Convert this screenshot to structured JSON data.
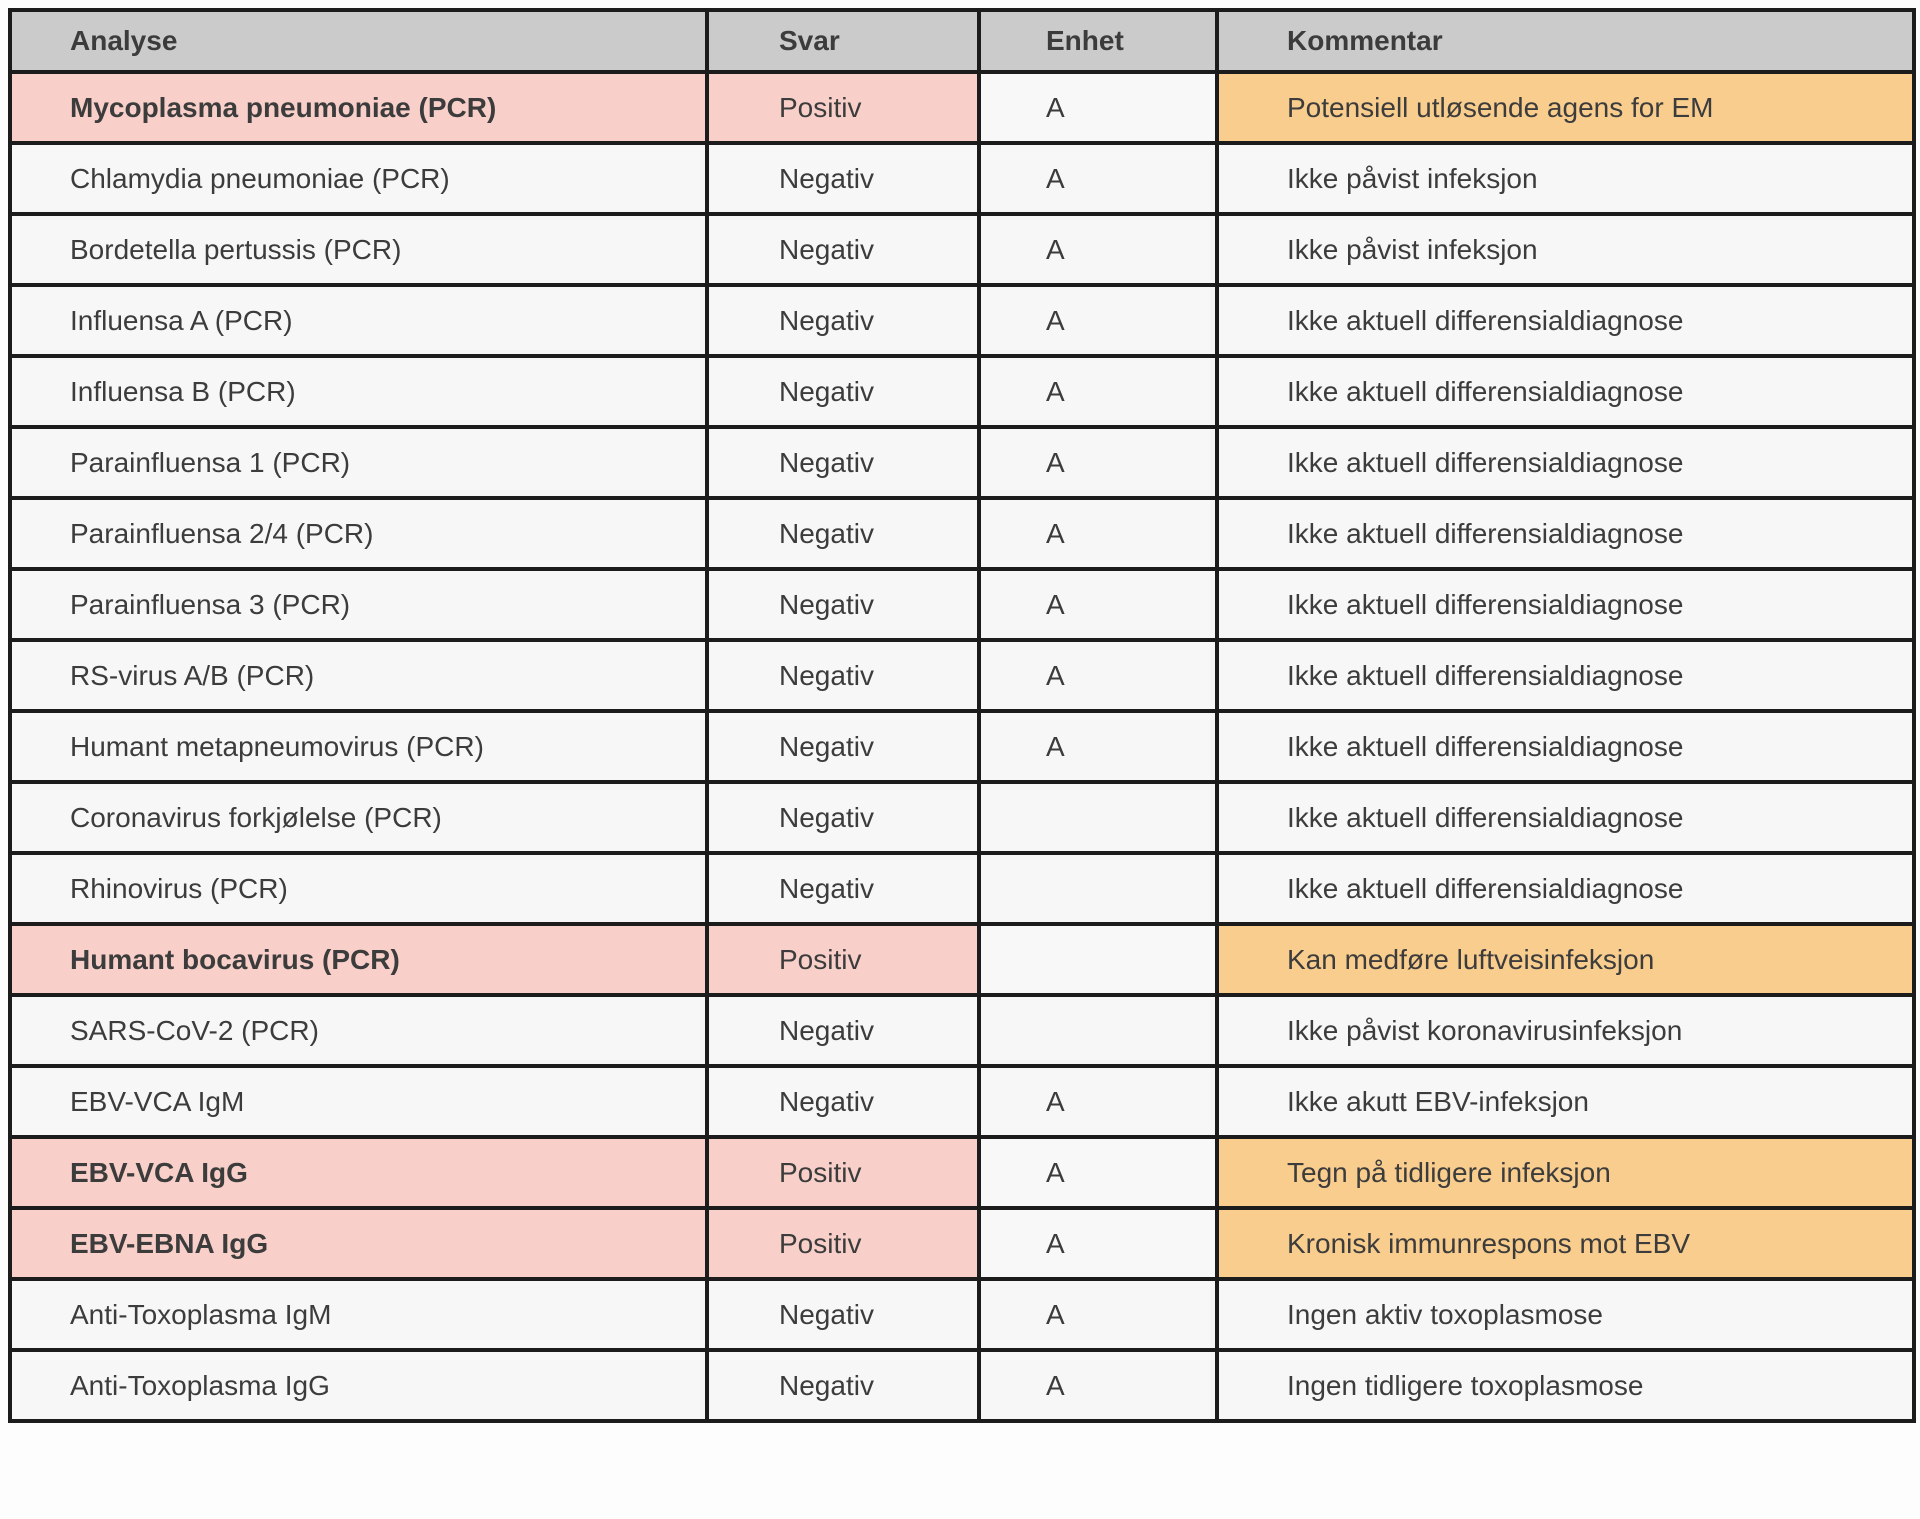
{
  "table": {
    "columns": [
      {
        "key": "analyse",
        "label": "Analyse"
      },
      {
        "key": "svar",
        "label": "Svar"
      },
      {
        "key": "enhet",
        "label": "Enhet"
      },
      {
        "key": "kommentar",
        "label": "Kommentar"
      }
    ],
    "rows": [
      {
        "analyse": "Mycoplasma pneumoniae (PCR)",
        "svar": "Positiv",
        "enhet": "A",
        "kommentar": "Potensiell utløsende agens for EM",
        "highlight": true
      },
      {
        "analyse": "Chlamydia pneumoniae (PCR)",
        "svar": "Negativ",
        "enhet": "A",
        "kommentar": "Ikke påvist infeksjon",
        "highlight": false
      },
      {
        "analyse": "Bordetella pertussis (PCR)",
        "svar": "Negativ",
        "enhet": "A",
        "kommentar": "Ikke påvist infeksjon",
        "highlight": false
      },
      {
        "analyse": "Influensa A (PCR)",
        "svar": "Negativ",
        "enhet": "A",
        "kommentar": "Ikke aktuell differensialdiagnose",
        "highlight": false
      },
      {
        "analyse": "Influensa B (PCR)",
        "svar": "Negativ",
        "enhet": "A",
        "kommentar": "Ikke aktuell differensialdiagnose",
        "highlight": false
      },
      {
        "analyse": "Parainfluensa 1 (PCR)",
        "svar": "Negativ",
        "enhet": "A",
        "kommentar": "Ikke aktuell differensialdiagnose",
        "highlight": false
      },
      {
        "analyse": "Parainfluensa 2/4 (PCR)",
        "svar": "Negativ",
        "enhet": "A",
        "kommentar": "Ikke aktuell differensialdiagnose",
        "highlight": false
      },
      {
        "analyse": "Parainfluensa 3 (PCR)",
        "svar": "Negativ",
        "enhet": "A",
        "kommentar": "Ikke aktuell differensialdiagnose",
        "highlight": false
      },
      {
        "analyse": "RS-virus A/B (PCR)",
        "svar": "Negativ",
        "enhet": "A",
        "kommentar": "Ikke aktuell differensialdiagnose",
        "highlight": false
      },
      {
        "analyse": "Humant metapneumovirus (PCR)",
        "svar": "Negativ",
        "enhet": "A",
        "kommentar": "Ikke aktuell differensialdiagnose",
        "highlight": false
      },
      {
        "analyse": "Coronavirus forkjølelse (PCR)",
        "svar": "Negativ",
        "enhet": "",
        "kommentar": "Ikke aktuell differensialdiagnose",
        "highlight": false
      },
      {
        "analyse": "Rhinovirus (PCR)",
        "svar": "Negativ",
        "enhet": "",
        "kommentar": "Ikke aktuell differensialdiagnose",
        "highlight": false
      },
      {
        "analyse": "Humant bocavirus (PCR)",
        "svar": "Positiv",
        "enhet": "",
        "kommentar": "Kan medføre luftveisinfeksjon",
        "highlight": true
      },
      {
        "analyse": "SARS-CoV-2 (PCR)",
        "svar": "Negativ",
        "enhet": "",
        "kommentar": "Ikke påvist koronavirusinfeksjon",
        "highlight": false
      },
      {
        "analyse": "EBV-VCA IgM",
        "svar": "Negativ",
        "enhet": "A",
        "kommentar": "Ikke akutt EBV-infeksjon",
        "highlight": false
      },
      {
        "analyse": "EBV-VCA IgG",
        "svar": "Positiv",
        "enhet": "A",
        "kommentar": "Tegn på tidligere infeksjon",
        "highlight": true
      },
      {
        "analyse": "EBV-EBNA IgG",
        "svar": "Positiv",
        "enhet": "A",
        "kommentar": "Kronisk immunrespons mot EBV",
        "highlight": true
      },
      {
        "analyse": "Anti-Toxoplasma IgM",
        "svar": "Negativ",
        "enhet": "A",
        "kommentar": "Ingen aktiv toxoplasmose",
        "highlight": false
      },
      {
        "analyse": "Anti-Toxoplasma IgG",
        "svar": "Negativ",
        "enhet": "A",
        "kommentar": "Ingen tidligere toxoplasmose",
        "highlight": false
      }
    ]
  },
  "colors": {
    "header_bg": "#cbcbcb",
    "row_bg": "#f7f7f7",
    "enhet_bg": "#f8f8f8",
    "highlight_pink": "#f8d0c9",
    "highlight_orange": "#f8cd8d",
    "border": "#1c1c1c",
    "text": "#3c3c3c"
  }
}
